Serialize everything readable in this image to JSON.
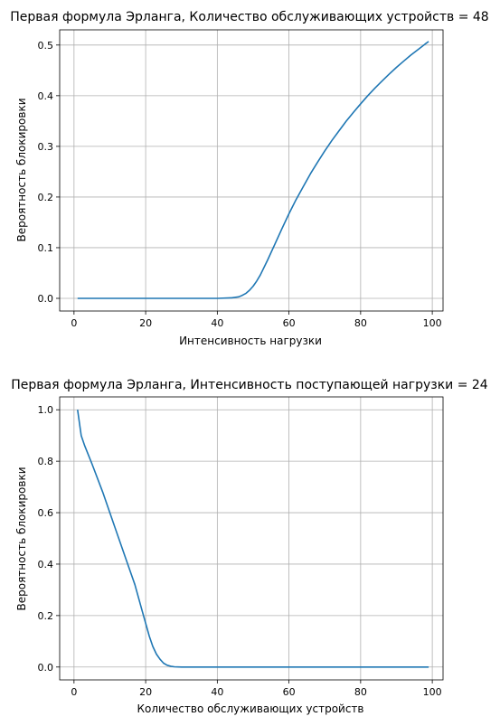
{
  "chart_data": [
    {
      "type": "line",
      "title": "Первая формула Эрланга, Количество обслуживающих устройств = 48",
      "xlabel": "Интенсивность нагрузки",
      "ylabel": "Вероятность блокировки",
      "xlim": [
        -4,
        103
      ],
      "ylim": [
        -0.025,
        0.53
      ],
      "xticks": [
        0,
        20,
        40,
        60,
        80,
        100
      ],
      "yticks": [
        0.0,
        0.1,
        0.2,
        0.3,
        0.4,
        0.5
      ],
      "ytick_labels": [
        "0.0",
        "0.1",
        "0.2",
        "0.3",
        "0.4",
        "0.5"
      ],
      "grid": true,
      "color": "#1f77b4",
      "series": [
        {
          "x": [
            1,
            10,
            20,
            30,
            40,
            44,
            46,
            47,
            48,
            49,
            50,
            51,
            52,
            54,
            56,
            58,
            60,
            62,
            64,
            66,
            68,
            70,
            72,
            74,
            76,
            78,
            80,
            82,
            84,
            86,
            88,
            90,
            92,
            94,
            96,
            98,
            99
          ],
          "y": [
            0.0,
            0.0,
            0.0,
            0.0,
            0.0,
            0.001,
            0.003,
            0.006,
            0.01,
            0.016,
            0.024,
            0.034,
            0.046,
            0.075,
            0.106,
            0.137,
            0.167,
            0.195,
            0.221,
            0.246,
            0.269,
            0.291,
            0.312,
            0.331,
            0.35,
            0.367,
            0.384,
            0.4,
            0.415,
            0.429,
            0.443,
            0.456,
            0.468,
            0.48,
            0.491,
            0.502,
            0.507
          ]
        }
      ]
    },
    {
      "type": "line",
      "title": "Первая формула Эрланга, Интенсивность поступающей нагрузки = 24",
      "xlabel": "Количество обслуживающих устройств",
      "ylabel": "Вероятность блокировки",
      "xlim": [
        -4,
        103
      ],
      "ylim": [
        -0.05,
        1.05
      ],
      "xticks": [
        0,
        20,
        40,
        60,
        80,
        100
      ],
      "yticks": [
        0.0,
        0.2,
        0.4,
        0.6,
        0.8,
        1.0
      ],
      "ytick_labels": [
        "0.0",
        "0.2",
        "0.4",
        "0.6",
        "0.8",
        "1.0"
      ],
      "grid": true,
      "color": "#1f77b4",
      "series": [
        {
          "x": [
            1,
            2,
            3,
            5,
            8,
            11,
            14,
            17,
            19,
            20,
            21,
            22,
            23,
            24,
            25,
            26,
            27,
            28,
            30,
            35,
            40,
            60,
            80,
            99
          ],
          "y": [
            1.0,
            0.9,
            0.86,
            0.79,
            0.68,
            0.56,
            0.44,
            0.32,
            0.22,
            0.17,
            0.12,
            0.08,
            0.05,
            0.03,
            0.015,
            0.007,
            0.003,
            0.001,
            0.0,
            0.0,
            0.0,
            0.0,
            0.0,
            0.0
          ]
        }
      ]
    }
  ]
}
